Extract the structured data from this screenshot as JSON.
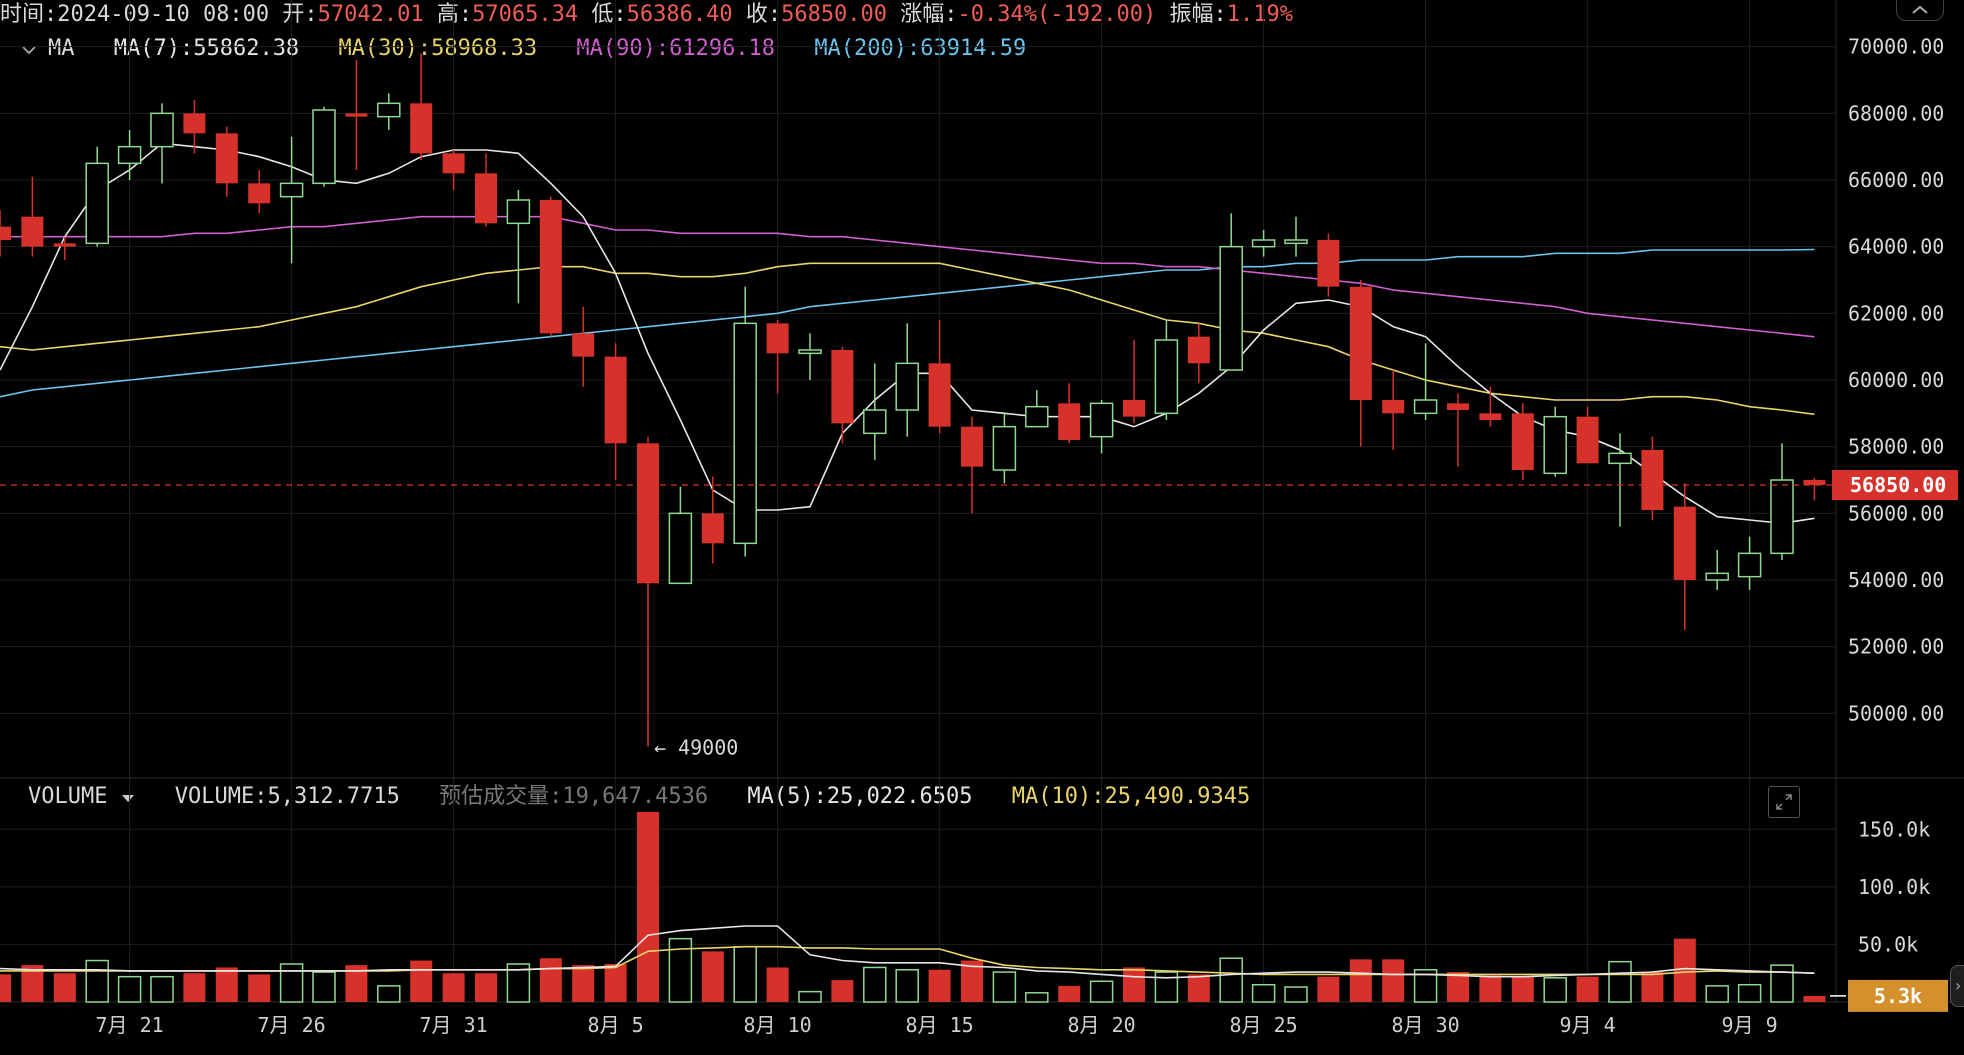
{
  "header": {
    "time_label": "时间:",
    "time_value": "2024-09-10 08:00",
    "open_label": "开:",
    "open_value": "57042.01",
    "high_label": "高:",
    "high_value": "57065.34",
    "low_label": "低:",
    "low_value": "56386.40",
    "close_label": "收:",
    "close_value": "56850.00",
    "change_label": "涨幅:",
    "change_value": "-0.34%(-192.00)",
    "amplitude_label": "振幅:",
    "amplitude_value": "1.19%"
  },
  "ma_bar": {
    "indicator": "MA",
    "ma7": "MA(7):55862.38",
    "ma30": "MA(30):58968.33",
    "ma90": "MA(90):61296.18",
    "ma200": "MA(200):63914.59"
  },
  "volume_bar": {
    "indicator": "VOLUME",
    "volume": "VOLUME:5,312.7715",
    "estimated": "预估成交量:19,647.4536",
    "ma5": "MA(5):25,022.6505",
    "ma10": "MA(10):25,490.9345"
  },
  "colors": {
    "up": "#8fd88f",
    "down": "#d6312b",
    "ma7": "#e6e6e6",
    "ma30": "#e8d56a",
    "ma90": "#d060d0",
    "ma200": "#6cc3ee",
    "grid": "#1e1e1e",
    "badge_close": "#d6312b",
    "badge_vol": "#d4902a"
  },
  "chart_data": {
    "type": "candlestick",
    "price_axis": {
      "ticks": [
        "70000.00",
        "68000.00",
        "66000.00",
        "64000.00",
        "62000.00",
        "60000.00",
        "58000.00",
        "56000.00",
        "54000.00",
        "52000.00",
        "50000.00"
      ],
      "range": [
        48000,
        70800
      ]
    },
    "current_price_label": "56850.00",
    "low_marker": "49000",
    "volume_axis": {
      "ticks": [
        "150.0k",
        "100.0k",
        "50.0k"
      ],
      "range": [
        0,
        165
      ]
    },
    "current_volume_label": "5.3k",
    "x_labels": [
      "7月 21",
      "7月 26",
      "7月 31",
      "8月 5",
      "8月 10",
      "8月 15",
      "8月 20",
      "8月 25",
      "8月 30",
      "9月 4",
      "9月 9"
    ],
    "candles": [
      {
        "o": 64600,
        "h": 65100,
        "l": 63700,
        "c": 64200,
        "v": 24
      },
      {
        "o": 64900,
        "h": 66100,
        "l": 63700,
        "c": 64000,
        "v": 32
      },
      {
        "o": 64100,
        "h": 64300,
        "l": 63600,
        "c": 64000,
        "v": 25
      },
      {
        "o": 64100,
        "h": 67000,
        "l": 64000,
        "c": 66500,
        "v": 36
      },
      {
        "o": 66500,
        "h": 67500,
        "l": 66000,
        "c": 67000,
        "v": 22
      },
      {
        "o": 67000,
        "h": 68300,
        "l": 65900,
        "c": 68000,
        "v": 22
      },
      {
        "o": 68000,
        "h": 68400,
        "l": 66800,
        "c": 67400,
        "v": 25
      },
      {
        "o": 67400,
        "h": 67600,
        "l": 65500,
        "c": 65900,
        "v": 30
      },
      {
        "o": 65900,
        "h": 66300,
        "l": 65000,
        "c": 65300,
        "v": 24
      },
      {
        "o": 65500,
        "h": 67300,
        "l": 63500,
        "c": 65900,
        "v": 33
      },
      {
        "o": 65900,
        "h": 68200,
        "l": 65800,
        "c": 68100,
        "v": 26
      },
      {
        "o": 68000,
        "h": 69600,
        "l": 66300,
        "c": 67900,
        "v": 32
      },
      {
        "o": 67900,
        "h": 68600,
        "l": 67500,
        "c": 68300,
        "v": 14
      },
      {
        "o": 68300,
        "h": 69800,
        "l": 66600,
        "c": 66800,
        "v": 36
      },
      {
        "o": 66800,
        "h": 66900,
        "l": 65700,
        "c": 66200,
        "v": 25
      },
      {
        "o": 66200,
        "h": 66800,
        "l": 64600,
        "c": 64700,
        "v": 25
      },
      {
        "o": 64700,
        "h": 65700,
        "l": 62300,
        "c": 65400,
        "v": 33
      },
      {
        "o": 65400,
        "h": 65500,
        "l": 61300,
        "c": 61400,
        "v": 38
      },
      {
        "o": 61400,
        "h": 62200,
        "l": 59800,
        "c": 60700,
        "v": 32
      },
      {
        "o": 60700,
        "h": 61100,
        "l": 57000,
        "c": 58100,
        "v": 33
      },
      {
        "o": 58100,
        "h": 58300,
        "l": 49000,
        "c": 53900,
        "v": 165
      },
      {
        "o": 53900,
        "h": 56800,
        "l": 53900,
        "c": 56000,
        "v": 55
      },
      {
        "o": 56000,
        "h": 57100,
        "l": 54500,
        "c": 55100,
        "v": 44
      },
      {
        "o": 55100,
        "h": 62800,
        "l": 54700,
        "c": 61700,
        "v": 48
      },
      {
        "o": 61700,
        "h": 61800,
        "l": 59600,
        "c": 60800,
        "v": 30
      },
      {
        "o": 60800,
        "h": 61400,
        "l": 60000,
        "c": 60900,
        "v": 9
      },
      {
        "o": 60900,
        "h": 61000,
        "l": 58100,
        "c": 58700,
        "v": 19
      },
      {
        "o": 58400,
        "h": 60500,
        "l": 57600,
        "c": 59100,
        "v": 30
      },
      {
        "o": 59100,
        "h": 61700,
        "l": 58300,
        "c": 60500,
        "v": 28
      },
      {
        "o": 60500,
        "h": 61800,
        "l": 58400,
        "c": 58600,
        "v": 28
      },
      {
        "o": 58600,
        "h": 58900,
        "l": 56000,
        "c": 57400,
        "v": 36
      },
      {
        "o": 57300,
        "h": 59000,
        "l": 56900,
        "c": 58600,
        "v": 26
      },
      {
        "o": 58600,
        "h": 59700,
        "l": 58600,
        "c": 59200,
        "v": 8
      },
      {
        "o": 59300,
        "h": 59900,
        "l": 58100,
        "c": 58200,
        "v": 14
      },
      {
        "o": 58300,
        "h": 59400,
        "l": 57800,
        "c": 59300,
        "v": 18
      },
      {
        "o": 59400,
        "h": 61200,
        "l": 58700,
        "c": 58900,
        "v": 30
      },
      {
        "o": 59000,
        "h": 61800,
        "l": 58800,
        "c": 61200,
        "v": 26
      },
      {
        "o": 61300,
        "h": 61700,
        "l": 59900,
        "c": 60500,
        "v": 24
      },
      {
        "o": 60300,
        "h": 65000,
        "l": 60300,
        "c": 64000,
        "v": 38
      },
      {
        "o": 64000,
        "h": 64500,
        "l": 63700,
        "c": 64200,
        "v": 15
      },
      {
        "o": 64100,
        "h": 64900,
        "l": 63700,
        "c": 64200,
        "v": 13
      },
      {
        "o": 64200,
        "h": 64400,
        "l": 62500,
        "c": 62800,
        "v": 22
      },
      {
        "o": 62800,
        "h": 63000,
        "l": 58000,
        "c": 59400,
        "v": 37
      },
      {
        "o": 59400,
        "h": 60300,
        "l": 57900,
        "c": 59000,
        "v": 37
      },
      {
        "o": 59000,
        "h": 61100,
        "l": 58800,
        "c": 59400,
        "v": 28
      },
      {
        "o": 59300,
        "h": 59600,
        "l": 57400,
        "c": 59100,
        "v": 26
      },
      {
        "o": 59000,
        "h": 59800,
        "l": 58600,
        "c": 58800,
        "v": 23
      },
      {
        "o": 59000,
        "h": 59300,
        "l": 57000,
        "c": 57300,
        "v": 22
      },
      {
        "o": 57200,
        "h": 59200,
        "l": 57100,
        "c": 58900,
        "v": 21
      },
      {
        "o": 58900,
        "h": 59200,
        "l": 57600,
        "c": 57500,
        "v": 22
      },
      {
        "o": 57500,
        "h": 58400,
        "l": 55600,
        "c": 57800,
        "v": 35
      },
      {
        "o": 57900,
        "h": 58300,
        "l": 55800,
        "c": 56100,
        "v": 26
      },
      {
        "o": 56200,
        "h": 56900,
        "l": 52500,
        "c": 54000,
        "v": 55
      },
      {
        "o": 54000,
        "h": 54900,
        "l": 53700,
        "c": 54200,
        "v": 14
      },
      {
        "o": 54100,
        "h": 55300,
        "l": 53700,
        "c": 54800,
        "v": 15
      },
      {
        "o": 54800,
        "h": 58100,
        "l": 54600,
        "c": 57000,
        "v": 32
      },
      {
        "o": 57000,
        "h": 57065,
        "l": 56386,
        "c": 56850,
        "v": 5.3
      }
    ],
    "ma7": [
      60300,
      62200,
      64300,
      65700,
      66300,
      67100,
      67000,
      66900,
      66700,
      66400,
      66000,
      65900,
      66200,
      66700,
      66900,
      66900,
      66800,
      65900,
      64900,
      63200,
      60800,
      58800,
      56700,
      56100,
      56100,
      56200,
      58400,
      59400,
      60200,
      60200,
      59100,
      59000,
      58900,
      58900,
      58900,
      58600,
      59000,
      59600,
      60400,
      61500,
      62300,
      62400,
      62200,
      61600,
      61300,
      60400,
      59600,
      58900,
      58500,
      58300,
      57900,
      57200,
      56500,
      55900,
      55800,
      55700,
      55850
    ],
    "ma30": [
      61000,
      60900,
      61000,
      61100,
      61200,
      61300,
      61400,
      61500,
      61600,
      61800,
      62000,
      62200,
      62500,
      62800,
      63000,
      63200,
      63300,
      63400,
      63400,
      63200,
      63200,
      63100,
      63100,
      63200,
      63400,
      63500,
      63500,
      63500,
      63500,
      63500,
      63300,
      63100,
      62900,
      62700,
      62400,
      62100,
      61800,
      61700,
      61500,
      61400,
      61200,
      61000,
      60600,
      60300,
      60000,
      59800,
      59600,
      59500,
      59400,
      59400,
      59400,
      59500,
      59500,
      59400,
      59200,
      59100,
      58970
    ],
    "ma90": [
      64300,
      64300,
      64300,
      64300,
      64300,
      64300,
      64400,
      64400,
      64500,
      64600,
      64600,
      64700,
      64800,
      64900,
      64900,
      64900,
      64900,
      64900,
      64700,
      64500,
      64500,
      64400,
      64400,
      64400,
      64400,
      64300,
      64300,
      64200,
      64100,
      64000,
      63900,
      63800,
      63700,
      63600,
      63500,
      63500,
      63400,
      63400,
      63300,
      63200,
      63100,
      63000,
      62900,
      62700,
      62600,
      62500,
      62400,
      62300,
      62200,
      62000,
      61900,
      61800,
      61700,
      61600,
      61500,
      61400,
      61296
    ],
    "ma200": [
      59500,
      59700,
      59800,
      59900,
      60000,
      60100,
      60200,
      60300,
      60400,
      60500,
      60600,
      60700,
      60800,
      60900,
      61000,
      61100,
      61200,
      61300,
      61400,
      61500,
      61600,
      61700,
      61800,
      61900,
      62000,
      62200,
      62300,
      62400,
      62500,
      62600,
      62700,
      62800,
      62900,
      63000,
      63100,
      63200,
      63300,
      63300,
      63400,
      63400,
      63500,
      63500,
      63600,
      63600,
      63600,
      63700,
      63700,
      63700,
      63800,
      63800,
      63800,
      63900,
      63900,
      63900,
      63900,
      63900,
      63914
    ],
    "vol_ma5": [
      29,
      28,
      28,
      28,
      27,
      27,
      27,
      27,
      27,
      27,
      27,
      27,
      28,
      28,
      28,
      28,
      28,
      29,
      30,
      31,
      58,
      62,
      64,
      66,
      66,
      41,
      36,
      34,
      34,
      34,
      31,
      30,
      27,
      26,
      24,
      22,
      21,
      22,
      24,
      25,
      26,
      26,
      25,
      24,
      24,
      23,
      22,
      22,
      23,
      24,
      25,
      26,
      29,
      28,
      27,
      26,
      25
    ],
    "vol_ma10": [
      27,
      27,
      27,
      27,
      27,
      27,
      27,
      27,
      27,
      27,
      27,
      27,
      27,
      28,
      28,
      28,
      28,
      29,
      29,
      30,
      44,
      46,
      47,
      48,
      48,
      47,
      47,
      46,
      46,
      46,
      38,
      32,
      30,
      29,
      28,
      28,
      27,
      26,
      25,
      24,
      24,
      24,
      24,
      24,
      24,
      24,
      24,
      24,
      24,
      24,
      24,
      24,
      26,
      27,
      26,
      26,
      25
    ]
  }
}
